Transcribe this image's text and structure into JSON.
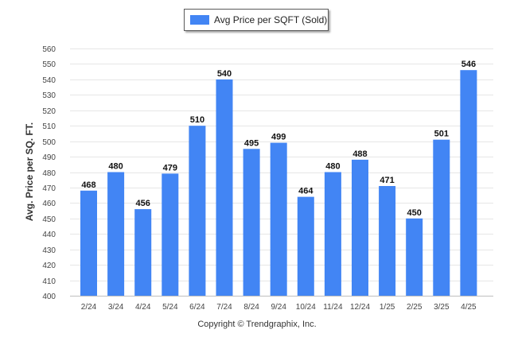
{
  "chart_data": {
    "type": "bar",
    "title": "",
    "xlabel": "",
    "ylabel": "Avg. Price per SQ. FT.",
    "ylim": [
      400,
      560
    ],
    "yticks": [
      400,
      410,
      420,
      430,
      440,
      450,
      460,
      470,
      480,
      490,
      500,
      510,
      520,
      530,
      540,
      550,
      560
    ],
    "grid": true,
    "legend_position": "top-center",
    "categories": [
      "2/24",
      "3/24",
      "4/24",
      "5/24",
      "6/24",
      "7/24",
      "8/24",
      "9/24",
      "10/24",
      "11/24",
      "12/24",
      "1/25",
      "2/25",
      "3/25",
      "4/25"
    ],
    "series": [
      {
        "name": "Avg Price per SQFT (Sold)",
        "color": "#4285f4",
        "values": [
          468,
          480,
          456,
          479,
          510,
          540,
          495,
          499,
          464,
          480,
          488,
          471,
          450,
          501,
          546
        ]
      }
    ]
  },
  "footer": {
    "copyright": "Copyright © Trendgraphix, Inc."
  }
}
